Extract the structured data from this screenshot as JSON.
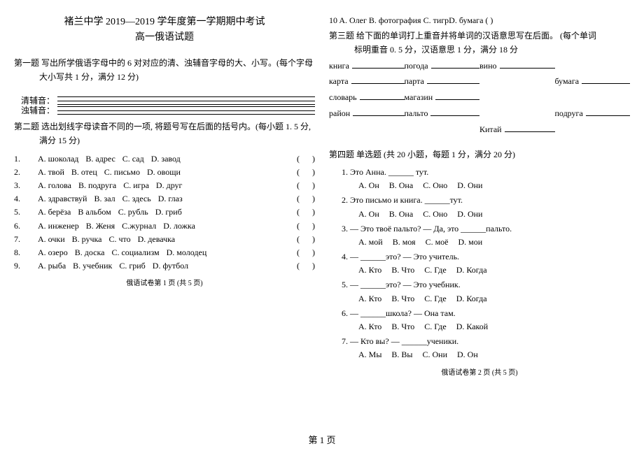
{
  "left": {
    "school_line": "褚兰中学 2019—2019 学年度第一学期期中考试",
    "subject_line": "高一俄语试题",
    "sec1_title": "第一题 写出所学俄语字母中的 6 对对应的清、浊辅音字母的大、小写。(每个字母",
    "sec1_sub": "大小写共 1 分，满分 12 分)",
    "staff_label1": "清辅音：",
    "staff_label2": "浊辅音：",
    "sec2_title": "第二题 选出划线字母读音不同的一项, 将题号写在后面的括号内。(每小题 1. 5 分,",
    "sec2_sub": "满分 15 分)",
    "q2": [
      {
        "n": "1.",
        "opts": [
          "A. шоколад",
          "B. адрес",
          "C. сад",
          "D. завод"
        ]
      },
      {
        "n": "2.",
        "opts": [
          "A. твой",
          "B. отец",
          "C. письмо",
          "D. овощи"
        ]
      },
      {
        "n": "3.",
        "opts": [
          "A. голова",
          "B. подруга",
          "C. игра",
          "D. друг"
        ]
      },
      {
        "n": "4.",
        "opts": [
          "A. здравствуй",
          "B. зал",
          "C. здесь",
          "D. глаз"
        ]
      },
      {
        "n": "5.",
        "opts": [
          "A. берёза",
          "B альбом",
          "C. рубль",
          "D. гриб"
        ]
      },
      {
        "n": "6.",
        "opts": [
          "A. инженер",
          "B. Женя",
          "C.журнал",
          "D. ложка"
        ]
      },
      {
        "n": "7.",
        "opts": [
          "A. очки",
          "B. ручка",
          "C. что",
          "D. девачка"
        ]
      },
      {
        "n": "8.",
        "opts": [
          "A. озеро",
          "B. доска",
          "C. социализм",
          "D. молодец"
        ]
      },
      {
        "n": "9.",
        "opts": [
          "A. рыба",
          "B. учебник",
          "C. гриб",
          "D. футбол"
        ]
      }
    ],
    "paren": "(      )",
    "footer": "俄语试卷第 1 页 (共 5 页)"
  },
  "right": {
    "q10_line": "10 A. Олег    B. фотография C. тигрD. бумага     (      )",
    "sec3_title": "第三题  给下面的单词打上重音并将单词的汉语意思写在后面。 (每个单词",
    "sec3_sub": "标明重音 0. 5  分，汉语意思  1  分，满分  18  分",
    "fill_rows": [
      [
        "книга",
        "погода",
        "вино",
        ""
      ],
      [
        "карта",
        "парта",
        "",
        "бумага"
      ],
      [
        "словарь",
        "магазин",
        "",
        ""
      ],
      [
        "район",
        "пальто",
        "",
        "подруга"
      ],
      [
        "",
        "",
        "Китай",
        ""
      ]
    ],
    "sec4_title": "第四题  单选题 (共 20 小题，每题 1 分，满分 20 分)",
    "mc": [
      {
        "n": "1.",
        "stem": "Это Анна. ______ тут.",
        "opts": [
          "A. Он",
          "B. Она",
          "C. Оно",
          "D. Они"
        ]
      },
      {
        "n": "2.",
        "stem": "Это письмо и книга. ______тут.",
        "opts": [
          "A. Он",
          "B. Она",
          "C. Оно",
          "D. Они"
        ]
      },
      {
        "n": "3.",
        "stem": "— Это твоё пальто?        — Да, это ______пальто.",
        "opts": [
          "A. мой",
          "B. моя",
          "C. моё",
          "D. мои"
        ]
      },
      {
        "n": "4.",
        "stem": "— ______это?        — Это учитель.",
        "opts": [
          "A. Кто",
          "B. Что",
          "C. Где",
          "D. Когда"
        ]
      },
      {
        "n": "5.",
        "stem": "— ______это?        — Это учебник.",
        "opts": [
          "A. Кто",
          "B. Что",
          "C. Где",
          "D. Когда"
        ]
      },
      {
        "n": "6.",
        "stem": "— ______школа?     — Она там.",
        "opts": [
          "A. Кто",
          "B. Что",
          "C. Где",
          "D. Какой"
        ]
      },
      {
        "n": "7.",
        "stem": "— Кто вы?    — ______ученики.",
        "opts": [
          "A. Мы",
          "B. Вы",
          "C. Они",
          "D. Он"
        ]
      }
    ],
    "footer": "俄语试卷第 2 页 (共 5 页)"
  },
  "page_num": "第 1 页"
}
